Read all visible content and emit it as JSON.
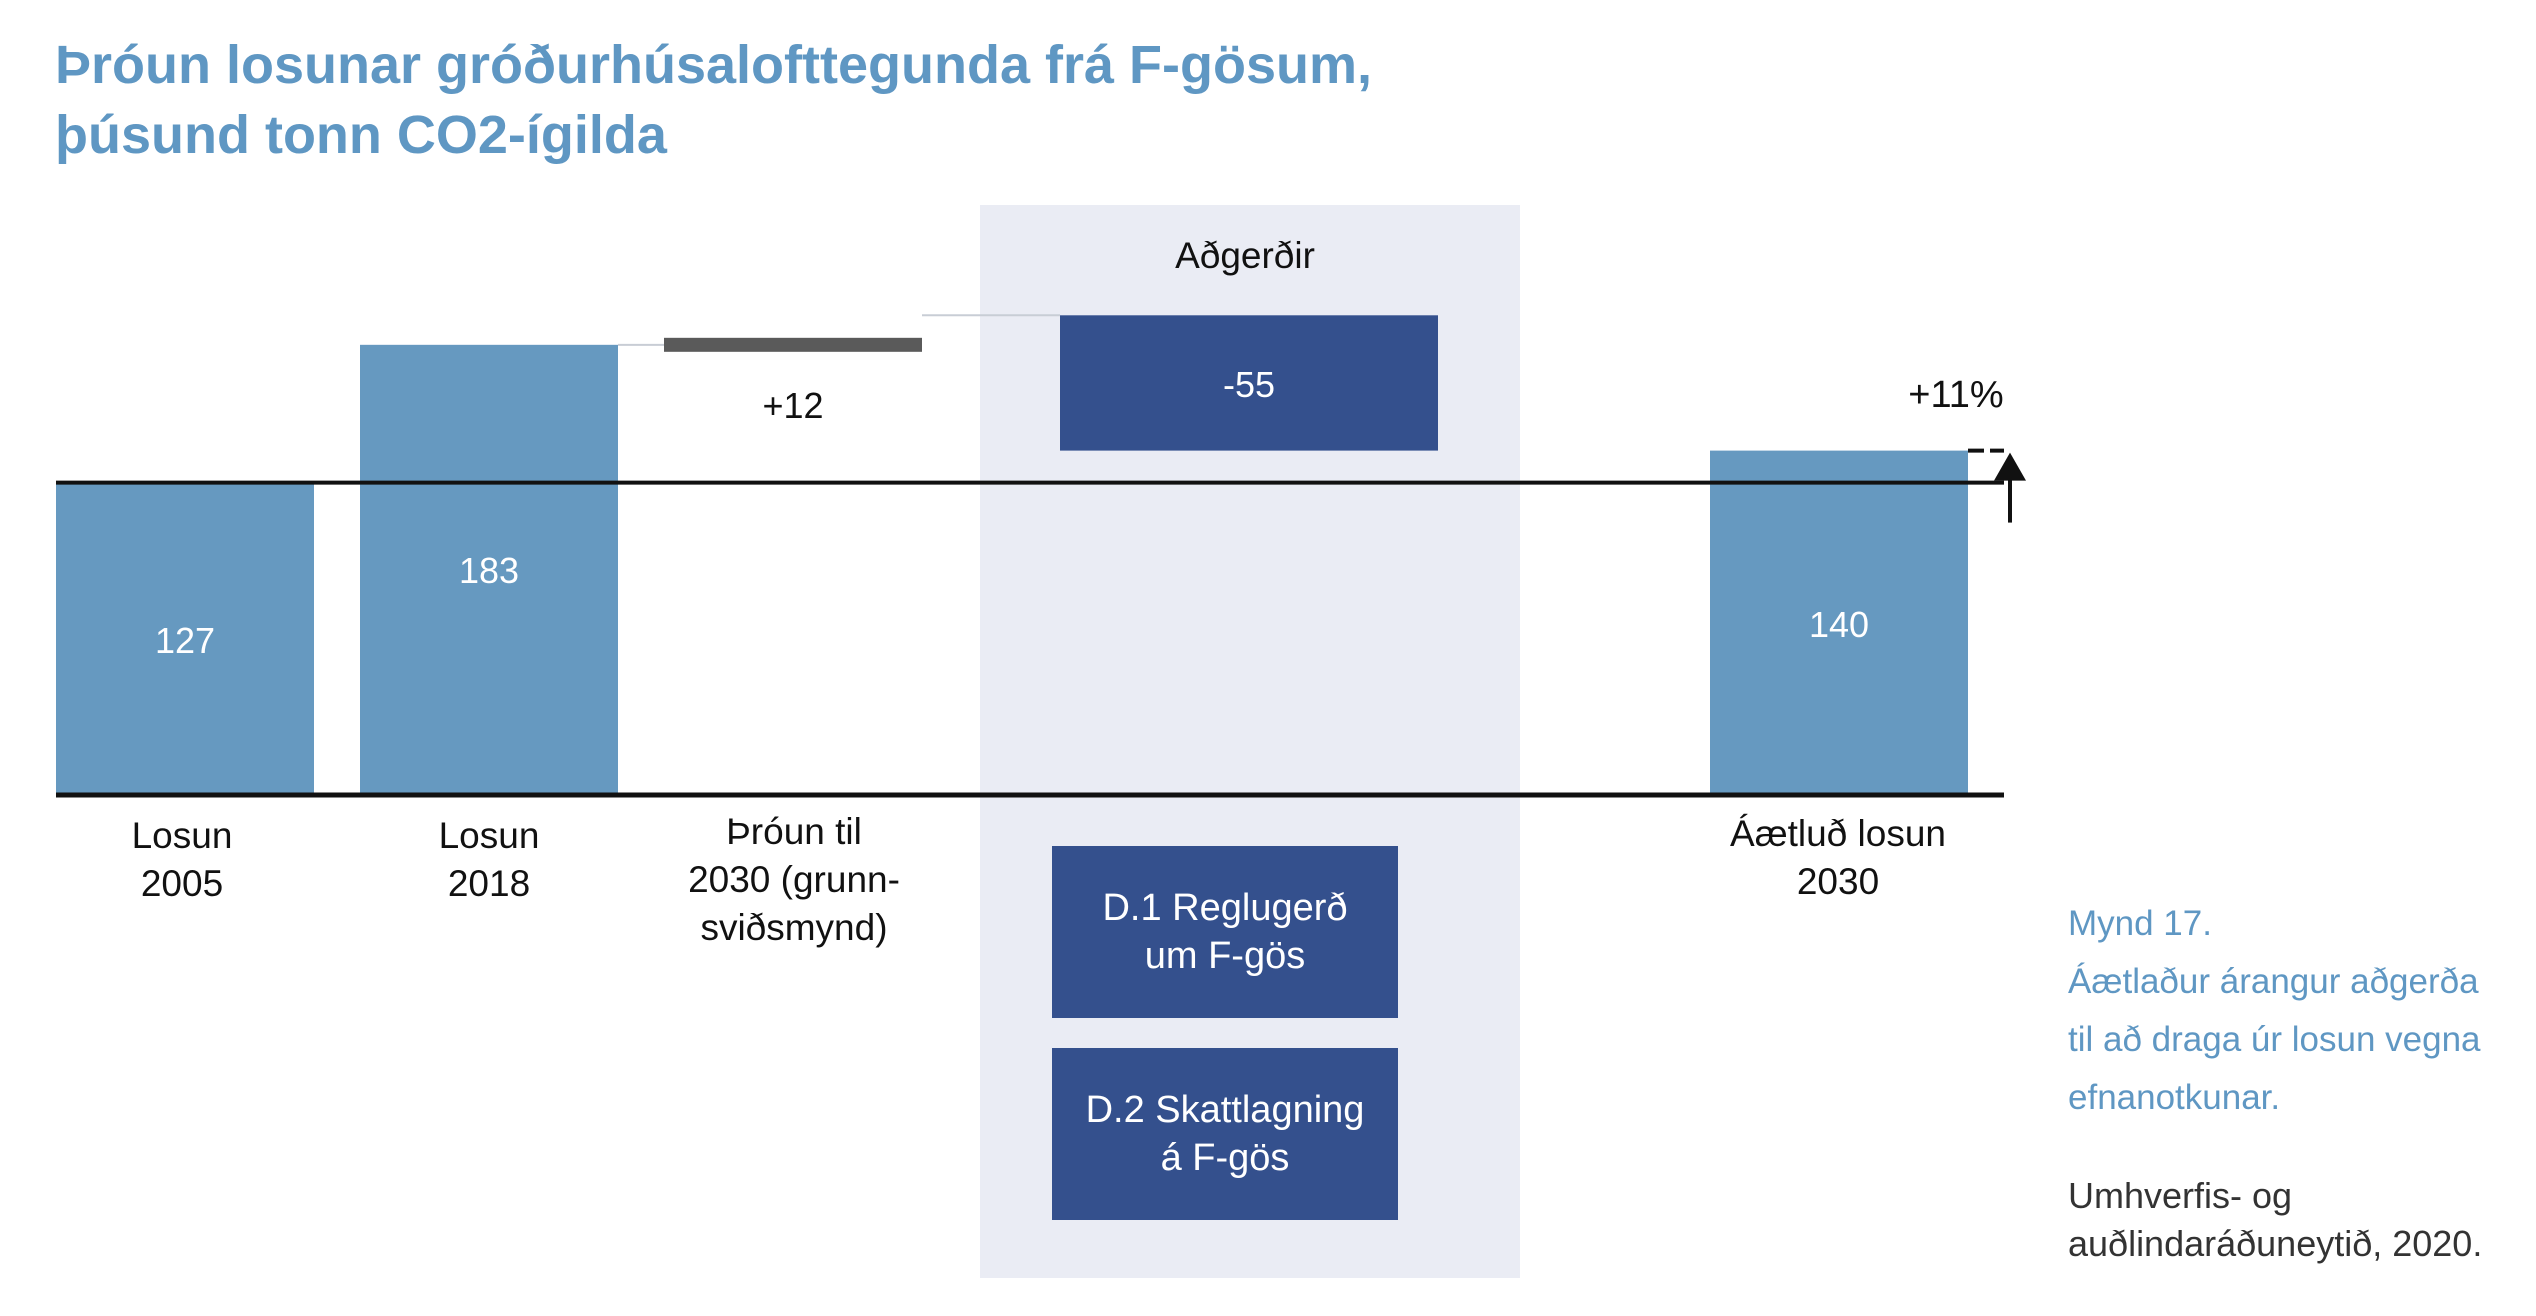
{
  "title_lines": [
    "Þróun losunar gróðurhúsalofttegunda frá F-gösum,",
    "þúsund tonn CO2-ígilda"
  ],
  "chart_data": {
    "type": "bar",
    "subtype": "waterfall",
    "categories": [
      [
        "Losun",
        "2005"
      ],
      [
        "Losun",
        "2018"
      ],
      [
        "Þróun til",
        "2030 (grunn-",
        "sviðsmynd)"
      ],
      [
        "Aðgerðir"
      ],
      [
        "Áætluð losun",
        "2030"
      ]
    ],
    "bars": [
      {
        "label": "127",
        "value": 127,
        "kind": "total"
      },
      {
        "label": "183",
        "value": 183,
        "kind": "total"
      },
      {
        "label": "+12",
        "value": 12,
        "kind": "increase"
      },
      {
        "label": "-55",
        "value": -55,
        "kind": "decrease"
      },
      {
        "label": "140",
        "value": 140,
        "kind": "total"
      }
    ],
    "reference_line_value": 127,
    "change_label": "+11%",
    "colors": {
      "total": "#6699c0",
      "increase": "#5a5a5a",
      "decrease": "#34508d",
      "highlight_band": "#eaecf4",
      "axis": "#111111",
      "connector": "#c8cdd5"
    }
  },
  "measures_header": "Aðgerðir",
  "measures": [
    {
      "lines": [
        "D.1 Reglugerð",
        "um F-gös"
      ]
    },
    {
      "lines": [
        "D.2 Skattlagning",
        "á F-gös"
      ]
    }
  ],
  "caption_lines": [
    "Mynd 17.",
    "Áætlaður árangur aðgerða",
    "til að draga úr losun vegna",
    "efnanotkunar."
  ],
  "source_lines": [
    "Umhverfis- og",
    "auðlindaráðuneytið, 2020."
  ]
}
